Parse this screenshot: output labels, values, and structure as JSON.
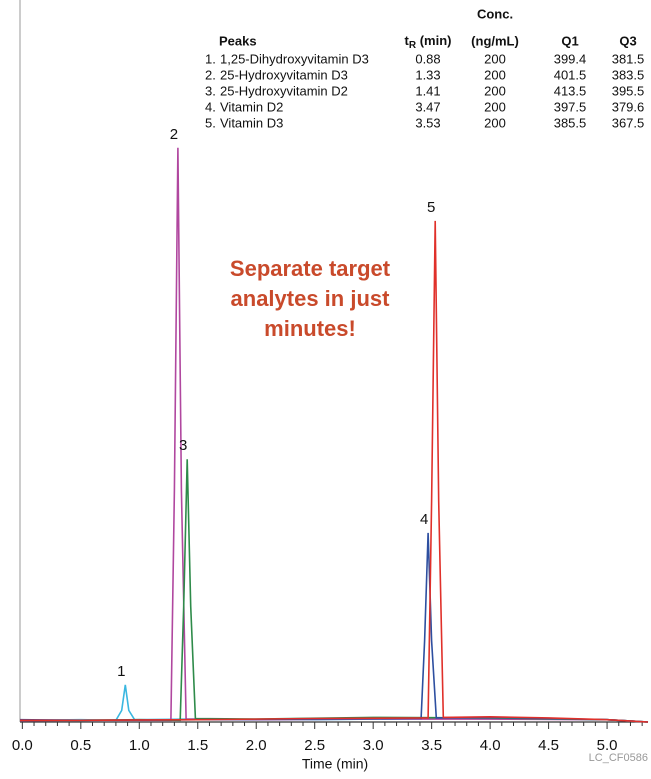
{
  "chart_data": {
    "type": "line",
    "x_label": "Time (min)",
    "footnote": "LC_CF0586",
    "annotation": [
      "Separate target",
      "analytes in just",
      "minutes!"
    ],
    "annotation_color": "#c94a2b",
    "xlim": [
      -0.02,
      5.35
    ],
    "ylim": [
      0,
      100
    ],
    "xticks": [
      {
        "value": 0,
        "label": "0.0"
      },
      {
        "value": 0.5,
        "label": "0.5"
      },
      {
        "value": 1,
        "label": "1.0"
      },
      {
        "value": 1.5,
        "label": "1.5"
      },
      {
        "value": 2,
        "label": "2.0"
      },
      {
        "value": 2.5,
        "label": "2.5"
      },
      {
        "value": 3,
        "label": "3.0"
      },
      {
        "value": 3.5,
        "label": "3.5"
      },
      {
        "value": 4,
        "label": "4.0"
      },
      {
        "value": 4.5,
        "label": "4.5"
      },
      {
        "value": 5,
        "label": "5.0"
      }
    ],
    "xminorticks": [
      0.1,
      0.2,
      0.3,
      0.4,
      0.6,
      0.7,
      0.8,
      0.9,
      1.1,
      1.2,
      1.3,
      1.4,
      1.6,
      1.7,
      1.8,
      1.9,
      2.1,
      2.2,
      2.3,
      2.4,
      2.6,
      2.7,
      2.8,
      2.9,
      3.1,
      3.2,
      3.3,
      3.4,
      3.6,
      3.7,
      3.8,
      3.9,
      4.1,
      4.2,
      4.3,
      4.4,
      4.6,
      4.7,
      4.8,
      4.9,
      5.1,
      5.2,
      5.3
    ],
    "series": [
      {
        "label": "1",
        "color": "#3ab7e0",
        "x": [
          -0.02,
          0.5,
          0.8,
          0.85,
          0.88,
          0.91,
          0.96,
          1.5,
          2.5,
          3.5,
          4.5,
          5.0,
          5.35
        ],
        "values": [
          0.3,
          0.4,
          0.3,
          2,
          6.4,
          2,
          0.4,
          0.5,
          0.4,
          0.6,
          0.5,
          0.4,
          0
        ]
      },
      {
        "label": "2",
        "color": "#b0479f",
        "x": [
          -0.02,
          0.5,
          1.0,
          1.27,
          1.3,
          1.33,
          1.36,
          1.4,
          2.0,
          3.0,
          4.0,
          5.0,
          5.35
        ],
        "values": [
          0.2,
          0.3,
          0.3,
          0.3,
          40,
          99,
          40,
          0.5,
          0.4,
          0.5,
          0.5,
          0.4,
          0
        ]
      },
      {
        "label": "3",
        "color": "#2e8b4a",
        "x": [
          -0.02,
          0.5,
          1.0,
          1.35,
          1.38,
          1.41,
          1.44,
          1.48,
          2.0,
          3.0,
          4.0,
          5.0,
          5.35
        ],
        "values": [
          0.3,
          0.3,
          0.4,
          0.3,
          20,
          45.3,
          20,
          0.6,
          0.5,
          0.8,
          0.7,
          0.4,
          0
        ]
      },
      {
        "label": "4",
        "color": "#2d4fa0",
        "x": [
          -0.02,
          0.5,
          1.5,
          2.5,
          3.41,
          3.44,
          3.47,
          3.5,
          3.54,
          4.0,
          4.5,
          5.0,
          5.35
        ],
        "values": [
          0.4,
          0.3,
          0.4,
          0.5,
          0.6,
          14,
          32.6,
          14,
          0.7,
          0.8,
          0.6,
          0.4,
          0
        ]
      },
      {
        "label": "5",
        "color": "#e0302a",
        "x": [
          -0.02,
          0.5,
          1.5,
          2.5,
          3.47,
          3.5,
          3.53,
          3.56,
          3.6,
          4.0,
          4.5,
          5.0,
          5.35
        ],
        "values": [
          0.3,
          0.3,
          0.4,
          0.6,
          0.7,
          38,
          86.4,
          38,
          0.8,
          0.9,
          0.7,
          0.4,
          0
        ]
      }
    ]
  },
  "table": {
    "headers": [
      "Peaks",
      {
        "main": "t",
        "sub": "R",
        "after": " (min)"
      },
      [
        "Conc.",
        "(ng/mL)"
      ],
      "Q1",
      "Q3"
    ],
    "rows": [
      [
        "1.",
        "1,25-Dihydroxyvitamin D3",
        "0.88",
        "200",
        "399.4",
        "381.5"
      ],
      [
        "2.",
        "25-Hydroxyvitamin D3",
        "1.33",
        "200",
        "401.5",
        "383.5"
      ],
      [
        "3.",
        "25-Hydroxyvitamin D2",
        "1.41",
        "200",
        "413.5",
        "395.5"
      ],
      [
        "4.",
        "Vitamin D2",
        "3.47",
        "200",
        "397.5",
        "379.6"
      ],
      [
        "5.",
        "Vitamin D3",
        "3.53",
        "200",
        "385.5",
        "367.5"
      ]
    ]
  }
}
